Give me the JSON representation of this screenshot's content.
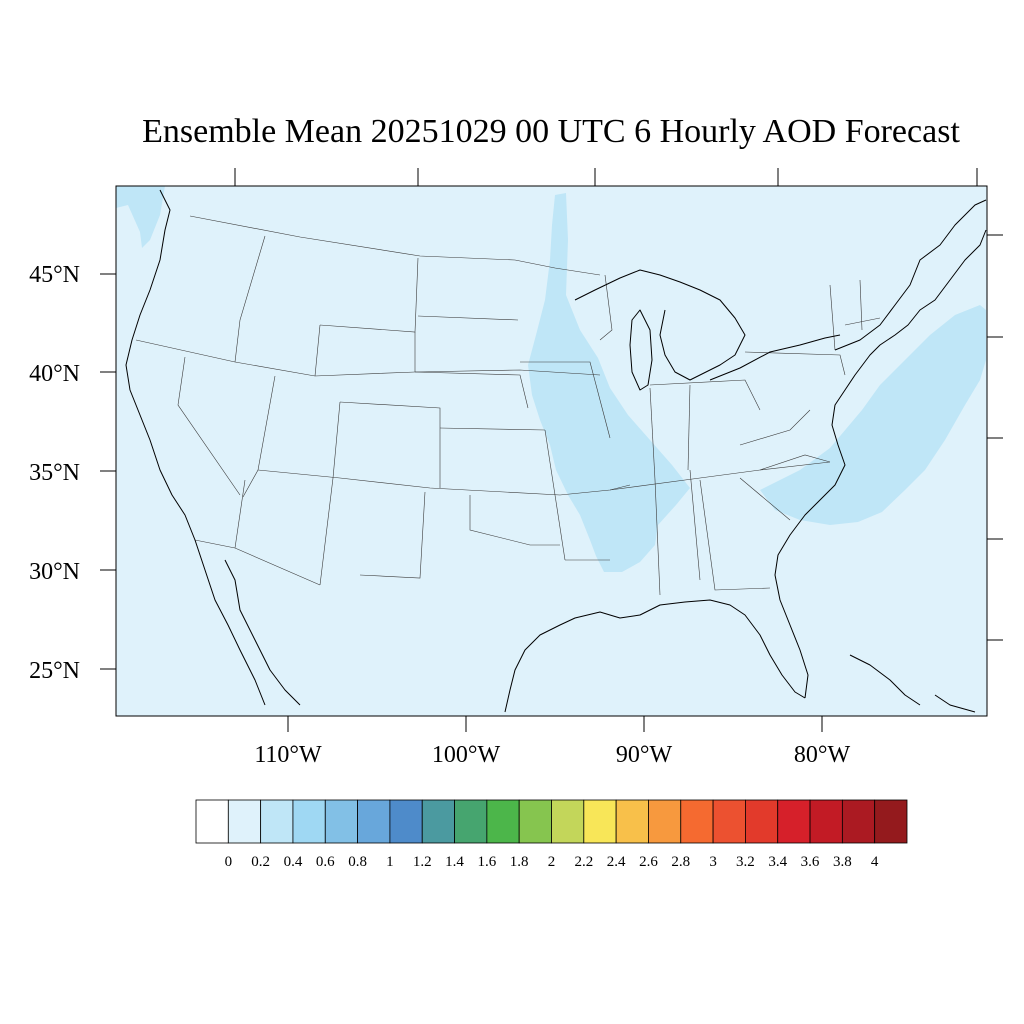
{
  "title": "Ensemble Mean 20251029 00 UTC 6 Hourly AOD Forecast",
  "lon_axis": {
    "ticks": [
      "110°W",
      "100°W",
      "90°W",
      "80°W"
    ]
  },
  "lat_axis": {
    "ticks": [
      "45°N",
      "40°N",
      "35°N",
      "30°N",
      "25°N"
    ]
  },
  "colorbar": {
    "labels": [
      "0",
      "0.2",
      "0.4",
      "0.6",
      "0.8",
      "1",
      "1.2",
      "1.4",
      "1.6",
      "1.8",
      "2",
      "2.2",
      "2.4",
      "2.6",
      "2.8",
      "3",
      "3.2",
      "3.4",
      "3.6",
      "3.8",
      "4"
    ],
    "colors": [
      "#ffffff",
      "#dff2fb",
      "#bfe6f7",
      "#9fd8f3",
      "#82c0e6",
      "#68a7db",
      "#4e8bca",
      "#4b9aa0",
      "#46a56f",
      "#4cb64a",
      "#86c54f",
      "#c3d65a",
      "#f8e658",
      "#f8c04a",
      "#f7993e",
      "#f56a30",
      "#ec5130",
      "#e23a2b",
      "#d6202a",
      "#c21b25",
      "#ab1a22",
      "#941a1d"
    ]
  },
  "colors": {
    "background_fill": "#dff2fb",
    "plume_fill": "#bfe6f7"
  }
}
